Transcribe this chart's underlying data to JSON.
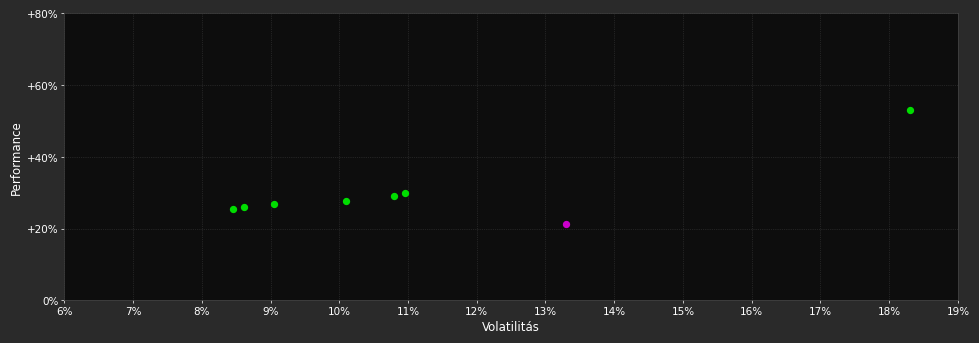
{
  "background_color": "#2a2a2a",
  "plot_bg_color": "#0d0d0d",
  "grid_color": "#3a3a3a",
  "grid_style": ":",
  "xlabel": "Volatilitás",
  "ylabel": "Performance",
  "xlim": [
    0.06,
    0.19
  ],
  "ylim": [
    0.0,
    0.8
  ],
  "xticks": [
    0.06,
    0.07,
    0.08,
    0.09,
    0.1,
    0.11,
    0.12,
    0.13,
    0.14,
    0.15,
    0.16,
    0.17,
    0.18,
    0.19
  ],
  "yticks": [
    0.0,
    0.2,
    0.4,
    0.6,
    0.8
  ],
  "ytick_labels": [
    "0%",
    "+20%",
    "+40%",
    "+60%",
    "+80%"
  ],
  "xtick_labels": [
    "6%",
    "7%",
    "8%",
    "9%",
    "10%",
    "11%",
    "12%",
    "13%",
    "14%",
    "15%",
    "16%",
    "17%",
    "18%",
    "19%"
  ],
  "green_points": [
    [
      0.0845,
      0.255
    ],
    [
      0.0862,
      0.26
    ],
    [
      0.0905,
      0.268
    ],
    [
      0.101,
      0.278
    ],
    [
      0.108,
      0.29
    ],
    [
      0.1095,
      0.298
    ],
    [
      0.183,
      0.53
    ]
  ],
  "magenta_points": [
    [
      0.133,
      0.212
    ]
  ],
  "point_color_green": "#00dd00",
  "point_color_magenta": "#cc00cc",
  "point_size": 18,
  "tick_color": "#ffffff",
  "label_color": "#ffffff",
  "tick_fontsize": 7.5,
  "label_fontsize": 8.5
}
